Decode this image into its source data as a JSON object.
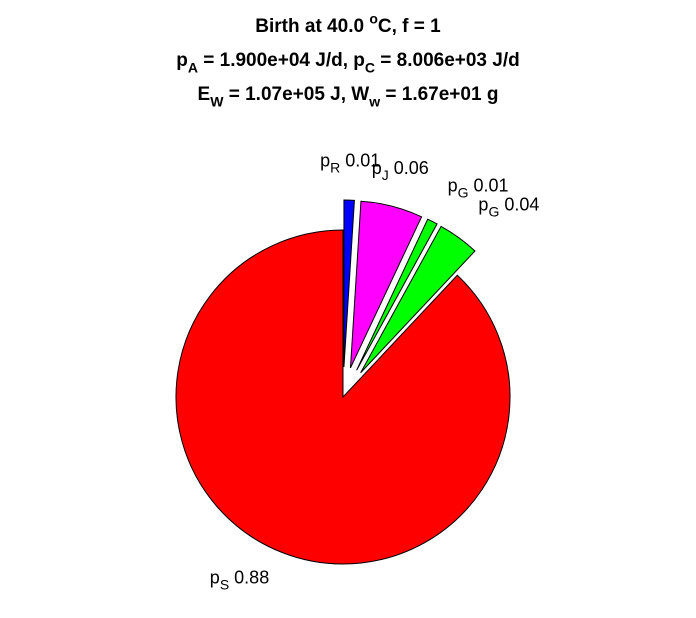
{
  "chart_data": {
    "type": "pie",
    "title_lines": [
      [
        {
          "text": "Birth at 40.0 "
        },
        {
          "text": "o",
          "shift": "sup"
        },
        {
          "text": "C, f = 1"
        }
      ],
      [
        {
          "text": "p"
        },
        {
          "text": "A",
          "shift": "sub"
        },
        {
          "text": " = 1.900e+04 J/d, p"
        },
        {
          "text": "C",
          "shift": "sub"
        },
        {
          "text": " = 8.006e+03 J/d"
        }
      ],
      [
        {
          "text": "E"
        },
        {
          "text": "W",
          "shift": "sub"
        },
        {
          "text": " = 1.07e+05 J, W"
        },
        {
          "text": "w",
          "shift": "sub"
        },
        {
          "text": " = 1.67e+01 g"
        }
      ]
    ],
    "label_prefix": "p",
    "categories": [
      "R",
      "J",
      "G",
      "G",
      "S"
    ],
    "values": [
      0.01,
      0.06,
      0.01,
      0.04,
      0.88
    ],
    "colors": [
      "#0000ff",
      "#ff00ff",
      "#00ff00",
      "#00ff00",
      "#ff0000"
    ],
    "explode": [
      1,
      1,
      1,
      1,
      0
    ]
  }
}
